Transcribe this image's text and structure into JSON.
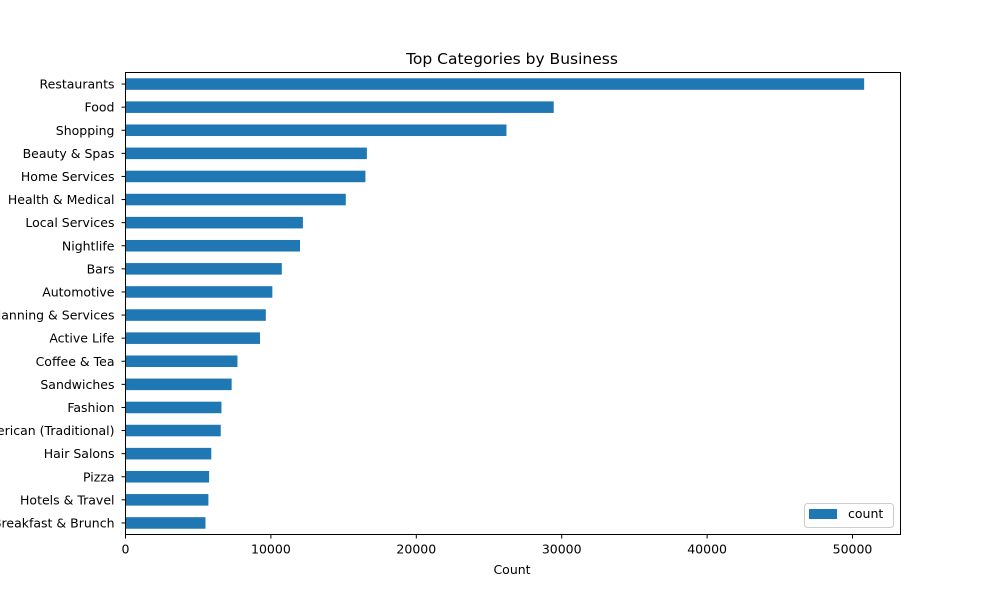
{
  "chart_data": {
    "type": "bar",
    "orientation": "horizontal",
    "title": "Top Categories by Business",
    "xlabel": "Count",
    "ylabel": "",
    "xlim": [
      0,
      53300
    ],
    "x_ticks": [
      0,
      10000,
      20000,
      30000,
      40000,
      50000
    ],
    "categories": [
      "Restaurants",
      "Food",
      "Shopping",
      "Beauty & Spas",
      "Home Services",
      "Health & Medical",
      "Local Services",
      "Nightlife",
      "Bars",
      "Automotive",
      "Event Planning & Services",
      "Active Life",
      "Coffee & Tea",
      "Sandwiches",
      "Fashion",
      "American (Traditional)",
      "Hair Salons",
      "Pizza",
      "Hotels & Travel",
      "Breakfast & Brunch"
    ],
    "series": [
      {
        "name": "count",
        "color": "#1f77b4",
        "values": [
          50800,
          29450,
          26200,
          16600,
          16500,
          15150,
          12200,
          12000,
          10750,
          10100,
          9650,
          9250,
          7700,
          7300,
          6600,
          6550,
          5900,
          5750,
          5700,
          5500
        ]
      }
    ],
    "grid": false,
    "legend_position": "lower-right"
  }
}
